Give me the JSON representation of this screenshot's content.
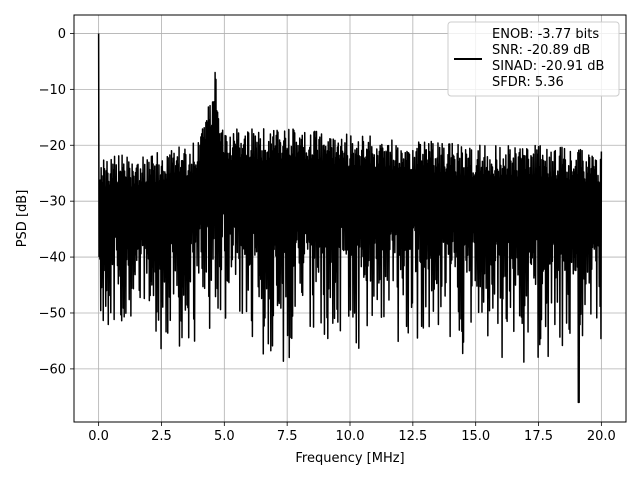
{
  "chart_data": {
    "type": "line",
    "title": "",
    "xlabel": "Frequency [MHz]",
    "ylabel": "PSD [dB]",
    "xlim": [
      -0.98,
      20.98
    ],
    "ylim": [
      -69.5,
      3.3
    ],
    "xticks": [
      0.0,
      2.5,
      5.0,
      7.5,
      10.0,
      12.5,
      15.0,
      17.5,
      20.0
    ],
    "xtick_labels": [
      "0.0",
      "2.5",
      "5.0",
      "7.5",
      "10.0",
      "12.5",
      "15.0",
      "17.5",
      "20.0"
    ],
    "yticks": [
      0,
      -10,
      -20,
      -30,
      -40,
      -50,
      -60
    ],
    "ytick_labels": [
      "0",
      "−10",
      "−20",
      "−30",
      "−40",
      "−50",
      "−60"
    ],
    "grid": true,
    "legend_position": "top-right",
    "line_color": "#000000",
    "legend": {
      "lines": [
        "ENOB: -3.77 bits",
        "SNR: -20.89 dB",
        "SINAD: -20.91 dB",
        "SFDR: 5.36"
      ]
    },
    "series": [
      {
        "x_range": [
          0,
          20
        ],
        "points": 1200,
        "features": [
          {
            "kind": "dc_spike",
            "x": 0.0,
            "y": 0.0
          },
          {
            "kind": "tone",
            "x": 4.65,
            "y": -8.5
          },
          {
            "kind": "min",
            "x": 19.1,
            "y": -66.0
          }
        ],
        "upper_envelope": [
          [
            0.3,
            -22
          ],
          [
            2.5,
            -21
          ],
          [
            4.0,
            -19
          ],
          [
            4.6,
            -9
          ],
          [
            5.0,
            -17
          ],
          [
            7.5,
            -17
          ],
          [
            10.0,
            -18
          ],
          [
            12.5,
            -19
          ],
          [
            15.0,
            -20
          ],
          [
            17.5,
            -20
          ],
          [
            20.0,
            -21
          ]
        ],
        "lower_envelope": [
          [
            0.3,
            -50
          ],
          [
            2.5,
            -52
          ],
          [
            5.0,
            -50
          ],
          [
            7.5,
            -55
          ],
          [
            10.0,
            -52
          ],
          [
            12.5,
            -50
          ],
          [
            15.0,
            -52
          ],
          [
            17.5,
            -55
          ],
          [
            20.0,
            -52
          ]
        ]
      }
    ]
  }
}
